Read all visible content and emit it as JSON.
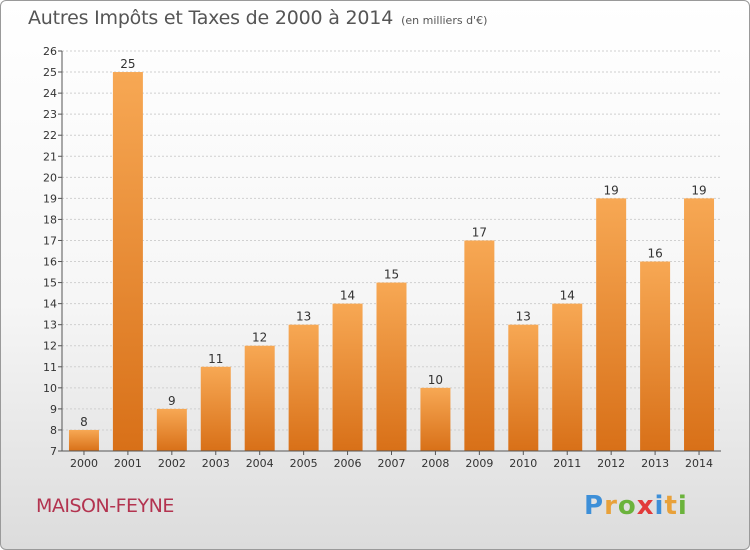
{
  "title": "Autres Impôts et Taxes de 2000 à 2014",
  "subtitle": "(en milliers d'€)",
  "town": "MAISON-FEYNE",
  "logo": {
    "text": "Proxiti",
    "letters": [
      {
        "ch": "P",
        "color": "#3d8fd8"
      },
      {
        "ch": "r",
        "color": "#e8a13a"
      },
      {
        "ch": "o",
        "color": "#6bb33c"
      },
      {
        "ch": "x",
        "color": "#e23a3a"
      },
      {
        "ch": "i",
        "color": "#3d8fd8"
      },
      {
        "ch": "t",
        "color": "#e8a13a"
      },
      {
        "ch": "i",
        "color": "#6bb33c"
      }
    ]
  },
  "colors": {
    "bar_light": "#f7a854",
    "bar_dark": "#d87018",
    "grid": "#d0d0d0",
    "axis": "#555555",
    "text": "#333333"
  },
  "chart_data": {
    "type": "bar",
    "categories": [
      "2000",
      "2001",
      "2002",
      "2003",
      "2004",
      "2005",
      "2006",
      "2007",
      "2008",
      "2009",
      "2010",
      "2011",
      "2012",
      "2013",
      "2014"
    ],
    "values": [
      8,
      25,
      9,
      11,
      12,
      13,
      14,
      15,
      10,
      17,
      13,
      14,
      19,
      16,
      19
    ],
    "ylim": [
      7,
      26
    ],
    "yticks": [
      7,
      8,
      9,
      10,
      11,
      12,
      13,
      14,
      15,
      16,
      17,
      18,
      19,
      20,
      21,
      22,
      23,
      24,
      25,
      26
    ],
    "grid": true,
    "data_labels": true
  }
}
